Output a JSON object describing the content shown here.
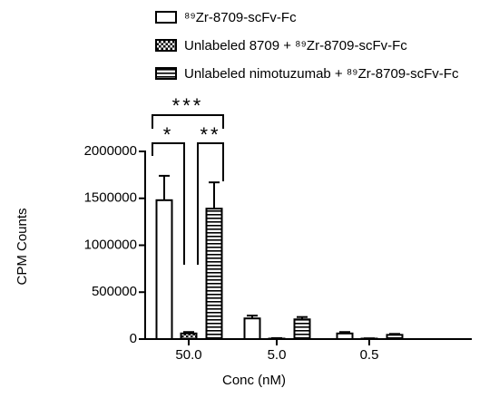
{
  "chart_data": {
    "type": "bar",
    "categories": [
      "50.0",
      "5.0",
      "0.5"
    ],
    "xlabel": "Conc (nM)",
    "ylabel": "CPM Counts",
    "ylim": [
      0,
      2000000
    ],
    "yticks": [
      0,
      500000,
      1000000,
      1500000,
      2000000
    ],
    "series": [
      {
        "name": "⁸⁹Zr-8709-scFv-Fc",
        "color": "#000000",
        "pattern": "none",
        "values": [
          1480000,
          220000,
          60000
        ],
        "errors": [
          260000,
          30000,
          15000
        ]
      },
      {
        "name": "Unlabeled 8709 + ⁸⁹Zr-8709-scFv-Fc",
        "color": "#000000",
        "pattern": "checker",
        "values": [
          60000,
          5000,
          5000
        ],
        "errors": [
          15000,
          5000,
          3000
        ]
      },
      {
        "name": "Unlabeled nimotuzumab + ⁸⁹Zr-8709-scFv-Fc",
        "color": "#000000",
        "pattern": "stripes",
        "values": [
          1390000,
          210000,
          45000
        ],
        "errors": [
          280000,
          25000,
          10000
        ]
      }
    ],
    "annotations": [
      "*",
      "**",
      "***"
    ]
  }
}
